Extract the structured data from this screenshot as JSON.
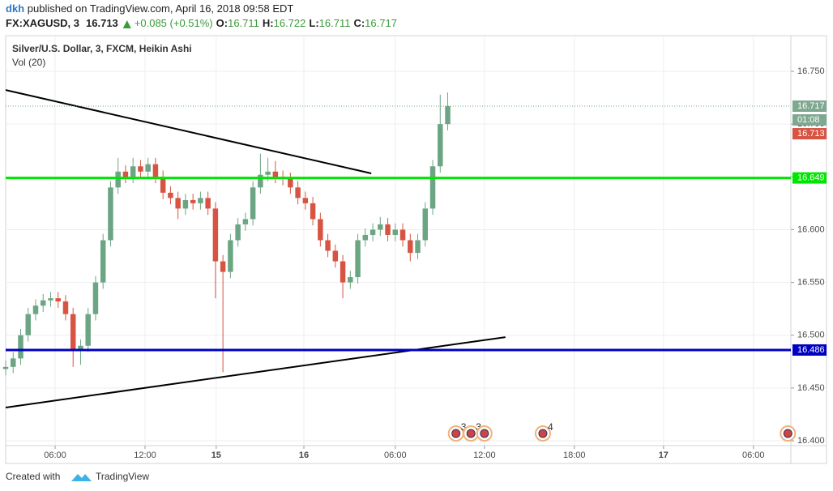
{
  "chart_data": {
    "type": "candlestick",
    "publisher": "dkh",
    "published_text": "published on TradingView.com, April 16, 2018 09:58 EDT",
    "symbol": "FX:XAGUSD, 3",
    "last": 16.713,
    "change": "+0.085 (+0.51%)",
    "ohlc": [
      {
        "label": "O:",
        "value": 16.711
      },
      {
        "label": "H:",
        "value": 16.722
      },
      {
        "label": "L:",
        "value": 16.711
      },
      {
        "label": "C:",
        "value": 16.717
      }
    ],
    "title": "Silver/U.S. Dollar, 3, FXCM, Heikin Ashi",
    "indicator": "Vol (20)",
    "countdown": "01:08",
    "footer": "Created with",
    "brand": "TradingView",
    "up_color": "#6ba583",
    "down_color": "#d75442",
    "grid": true,
    "x": [
      0,
      10,
      20,
      30,
      40,
      50,
      60,
      70,
      80,
      90,
      100,
      110,
      120,
      130,
      140,
      150,
      160,
      170,
      180,
      190,
      200,
      210,
      220,
      230,
      240,
      250,
      260,
      270,
      280,
      290,
      300,
      310,
      320,
      330,
      340,
      350,
      360,
      370,
      380,
      390,
      400,
      410,
      420,
      430,
      440,
      450,
      460,
      470,
      480,
      490,
      500,
      510,
      520,
      530,
      540,
      550,
      560,
      570,
      580,
      590
    ],
    "open": [
      16.468,
      16.47,
      16.478,
      16.5,
      16.52,
      16.528,
      16.533,
      16.535,
      16.532,
      16.52,
      16.485,
      16.49,
      16.52,
      16.55,
      16.59,
      16.64,
      16.655,
      16.65,
      16.66,
      16.655,
      16.662,
      16.65,
      16.635,
      16.63,
      16.62,
      16.628,
      16.625,
      16.63,
      16.62,
      16.57,
      16.56,
      16.59,
      16.605,
      16.61,
      16.64,
      16.652,
      16.655,
      16.65,
      16.648,
      16.64,
      16.63,
      16.625,
      16.61,
      16.59,
      16.58,
      16.57,
      16.55,
      16.555,
      16.59,
      16.595,
      16.6,
      16.605,
      16.595,
      16.6,
      16.59,
      16.578,
      16.59,
      16.62,
      16.66,
      16.7
    ],
    "high": [
      16.476,
      16.484,
      16.506,
      16.526,
      16.534,
      16.539,
      16.541,
      16.541,
      16.538,
      16.526,
      16.496,
      16.526,
      16.556,
      16.596,
      16.646,
      16.668,
      16.661,
      16.668,
      16.666,
      16.668,
      16.668,
      16.656,
      16.641,
      16.636,
      16.634,
      16.634,
      16.636,
      16.636,
      16.626,
      16.576,
      16.596,
      16.611,
      16.616,
      16.646,
      16.672,
      16.668,
      16.665,
      16.656,
      16.654,
      16.646,
      16.636,
      16.631,
      16.616,
      16.596,
      16.586,
      16.576,
      16.561,
      16.596,
      16.601,
      16.606,
      16.612,
      16.611,
      16.606,
      16.606,
      16.596,
      16.596,
      16.626,
      16.666,
      16.728,
      16.73
    ],
    "low": [
      16.462,
      16.464,
      16.472,
      16.494,
      16.514,
      16.522,
      16.527,
      16.526,
      16.514,
      16.47,
      16.472,
      16.484,
      16.514,
      16.544,
      16.584,
      16.634,
      16.644,
      16.644,
      16.649,
      16.649,
      16.644,
      16.629,
      16.624,
      16.61,
      16.614,
      16.619,
      16.619,
      16.614,
      16.535,
      16.465,
      16.554,
      16.584,
      16.599,
      16.604,
      16.634,
      16.646,
      16.644,
      16.642,
      16.634,
      16.624,
      16.619,
      16.604,
      16.584,
      16.574,
      16.564,
      16.535,
      16.544,
      16.549,
      16.584,
      16.589,
      16.594,
      16.589,
      16.589,
      16.584,
      16.57,
      16.572,
      16.584,
      16.614,
      16.654,
      16.694
    ],
    "close": [
      16.47,
      16.478,
      16.5,
      16.52,
      16.528,
      16.533,
      16.535,
      16.532,
      16.52,
      16.485,
      16.49,
      16.52,
      16.55,
      16.59,
      16.64,
      16.655,
      16.65,
      16.66,
      16.655,
      16.662,
      16.65,
      16.635,
      16.63,
      16.62,
      16.628,
      16.625,
      16.63,
      16.62,
      16.57,
      16.56,
      16.59,
      16.605,
      16.61,
      16.64,
      16.652,
      16.655,
      16.65,
      16.648,
      16.64,
      16.63,
      16.625,
      16.61,
      16.59,
      16.58,
      16.57,
      16.55,
      16.555,
      16.59,
      16.595,
      16.6,
      16.605,
      16.595,
      16.6,
      16.59,
      16.578,
      16.59,
      16.62,
      16.66,
      16.7,
      16.717
    ],
    "xlim": [
      0,
      1048
    ],
    "xticks": [
      {
        "value": 66,
        "label": "06:00"
      },
      {
        "value": 186,
        "label": "12:00"
      },
      {
        "value": 281,
        "label": "15"
      },
      {
        "value": 398,
        "label": "16"
      },
      {
        "value": 520,
        "label": "06:00"
      },
      {
        "value": 639,
        "label": "12:00"
      },
      {
        "value": 759,
        "label": "18:00"
      },
      {
        "value": 878,
        "label": "17"
      },
      {
        "value": 998,
        "label": "06:00"
      }
    ],
    "ylim": [
      16.3954,
      16.7838
    ],
    "yticks": [
      {
        "value": 16.4,
        "label": "16.400"
      },
      {
        "value": 16.45,
        "label": "16.450"
      },
      {
        "value": 16.5,
        "label": "16.500"
      },
      {
        "value": 16.55,
        "label": "16.550"
      },
      {
        "value": 16.6,
        "label": "16.600"
      },
      {
        "value": 16.65,
        "label": "16.650"
      },
      {
        "value": 16.7,
        "label": "16.700"
      },
      {
        "value": 16.75,
        "label": "16.750"
      }
    ],
    "hlines": [
      {
        "value": 16.649,
        "color": "#00e600"
      },
      {
        "value": 16.486,
        "color": "#0000c0"
      }
    ],
    "price_line": 16.717,
    "trendlines": [
      {
        "x": [
          0,
          488
        ],
        "y": [
          16.7323,
          16.6533
        ],
        "color": "#000000"
      },
      {
        "x": [
          0,
          667
        ],
        "y": [
          16.4315,
          16.4982
        ],
        "color": "#000000"
      }
    ],
    "events": [
      {
        "x": 601,
        "count": 3
      },
      {
        "x": 621,
        "count": 3
      },
      {
        "x": 639
      },
      {
        "x": 717,
        "count": 4
      },
      {
        "x": 1044
      }
    ]
  }
}
